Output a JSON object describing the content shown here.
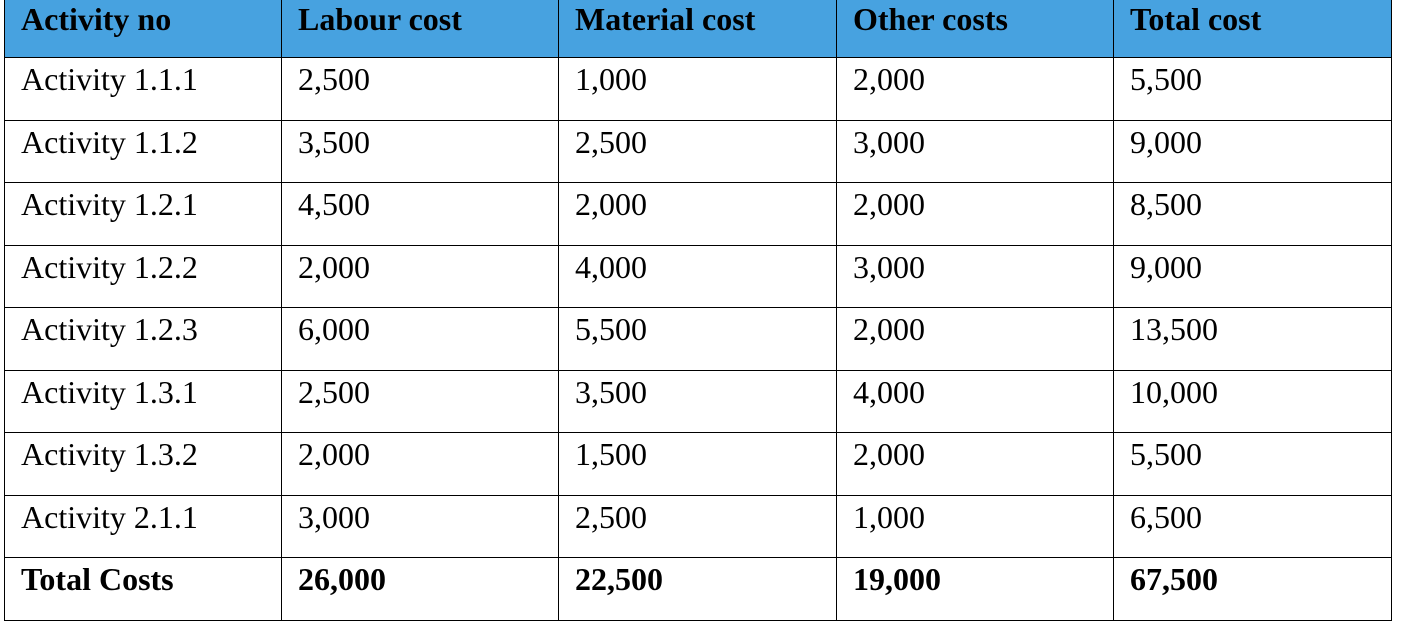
{
  "table": {
    "header": [
      "Activity no",
      "Labour cost",
      "Material cost",
      "Other costs",
      "Total cost"
    ],
    "rows": [
      [
        "Activity 1.1.1",
        "2,500",
        "1,000",
        "2,000",
        "5,500"
      ],
      [
        "Activity 1.1.2",
        "3,500",
        "2,500",
        "3,000",
        "9,000"
      ],
      [
        "Activity 1.2.1",
        "4,500",
        "2,000",
        "2,000",
        "8,500"
      ],
      [
        "Activity 1.2.2",
        "2,000",
        "4,000",
        "3,000",
        "9,000"
      ],
      [
        "Activity 1.2.3",
        "6,000",
        "5,500",
        "2,000",
        "13,500"
      ],
      [
        "Activity 1.3.1",
        "2,500",
        "3,500",
        "4,000",
        "10,000"
      ],
      [
        "Activity 1.3.2",
        "2,000",
        "1,500",
        "2,000",
        "5,500"
      ],
      [
        "Activity 2.1.1",
        "3,000",
        "2,500",
        "1,000",
        "6,500"
      ]
    ],
    "total": [
      "Total Costs",
      "26,000",
      "22,500",
      "19,000",
      "67,500"
    ]
  }
}
